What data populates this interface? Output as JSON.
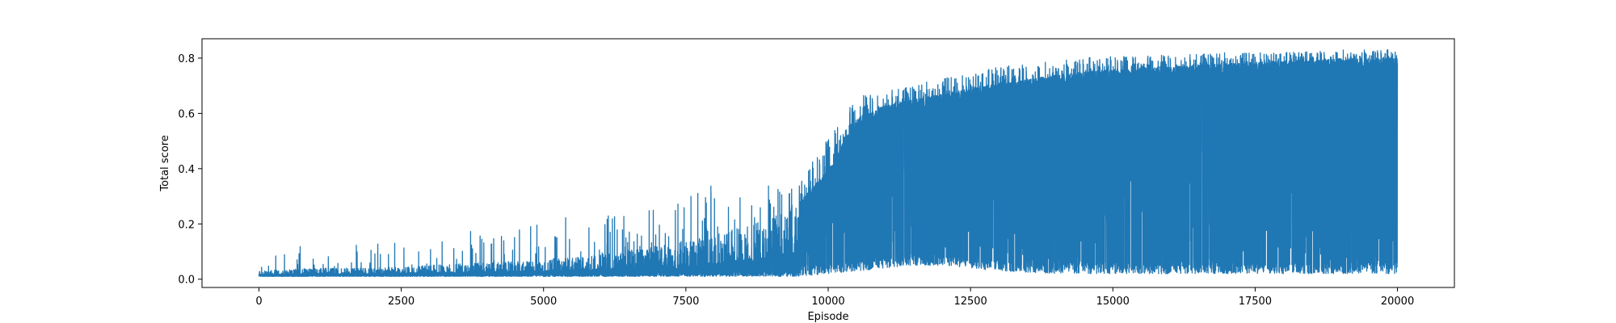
{
  "chart_data": {
    "type": "line",
    "title": "",
    "xlabel": "Episode",
    "ylabel": "Total score",
    "xlim": [
      -1000,
      21000
    ],
    "ylim": [
      -0.03,
      0.87
    ],
    "x_ticks": [
      0,
      2500,
      5000,
      7500,
      10000,
      12500,
      15000,
      17500,
      20000
    ],
    "x_tick_labels": [
      "0",
      "2500",
      "5000",
      "7500",
      "10000",
      "12500",
      "15000",
      "17500",
      "20000"
    ],
    "y_ticks": [
      0.0,
      0.2,
      0.4,
      0.6,
      0.8
    ],
    "y_tick_labels": [
      "0.0",
      "0.2",
      "0.4",
      "0.6",
      "0.8"
    ],
    "grid": false,
    "legend": "none",
    "line_color": "#1f77b4",
    "series": [
      {
        "name": "",
        "x_range": [
          0,
          20000
        ],
        "n_points": 20000,
        "envelope": {
          "x": [
            0,
            1000,
            2000,
            3000,
            4000,
            5000,
            6000,
            7000,
            7500,
            8000,
            8500,
            9000,
            9500,
            10000,
            10500,
            11000,
            11500,
            12000,
            12500,
            13000,
            14000,
            15000,
            16000,
            17000,
            18000,
            19000,
            20000
          ],
          "floor": [
            0.01,
            0.01,
            0.01,
            0.01,
            0.01,
            0.01,
            0.01,
            0.01,
            0.01,
            0.01,
            0.01,
            0.01,
            0.01,
            0.02,
            0.03,
            0.04,
            0.05,
            0.05,
            0.04,
            0.03,
            0.02,
            0.02,
            0.02,
            0.02,
            0.02,
            0.02,
            0.02
          ],
          "typical_peak": [
            0.03,
            0.04,
            0.04,
            0.05,
            0.06,
            0.07,
            0.09,
            0.12,
            0.14,
            0.16,
            0.19,
            0.22,
            0.28,
            0.4,
            0.58,
            0.63,
            0.65,
            0.67,
            0.69,
            0.71,
            0.74,
            0.76,
            0.77,
            0.78,
            0.79,
            0.8,
            0.8
          ],
          "max_peak": [
            0.05,
            0.17,
            0.13,
            0.16,
            0.18,
            0.22,
            0.23,
            0.26,
            0.29,
            0.35,
            0.33,
            0.34,
            0.36,
            0.52,
            0.66,
            0.68,
            0.7,
            0.73,
            0.74,
            0.77,
            0.79,
            0.81,
            0.81,
            0.82,
            0.82,
            0.83,
            0.83
          ]
        }
      }
    ]
  }
}
